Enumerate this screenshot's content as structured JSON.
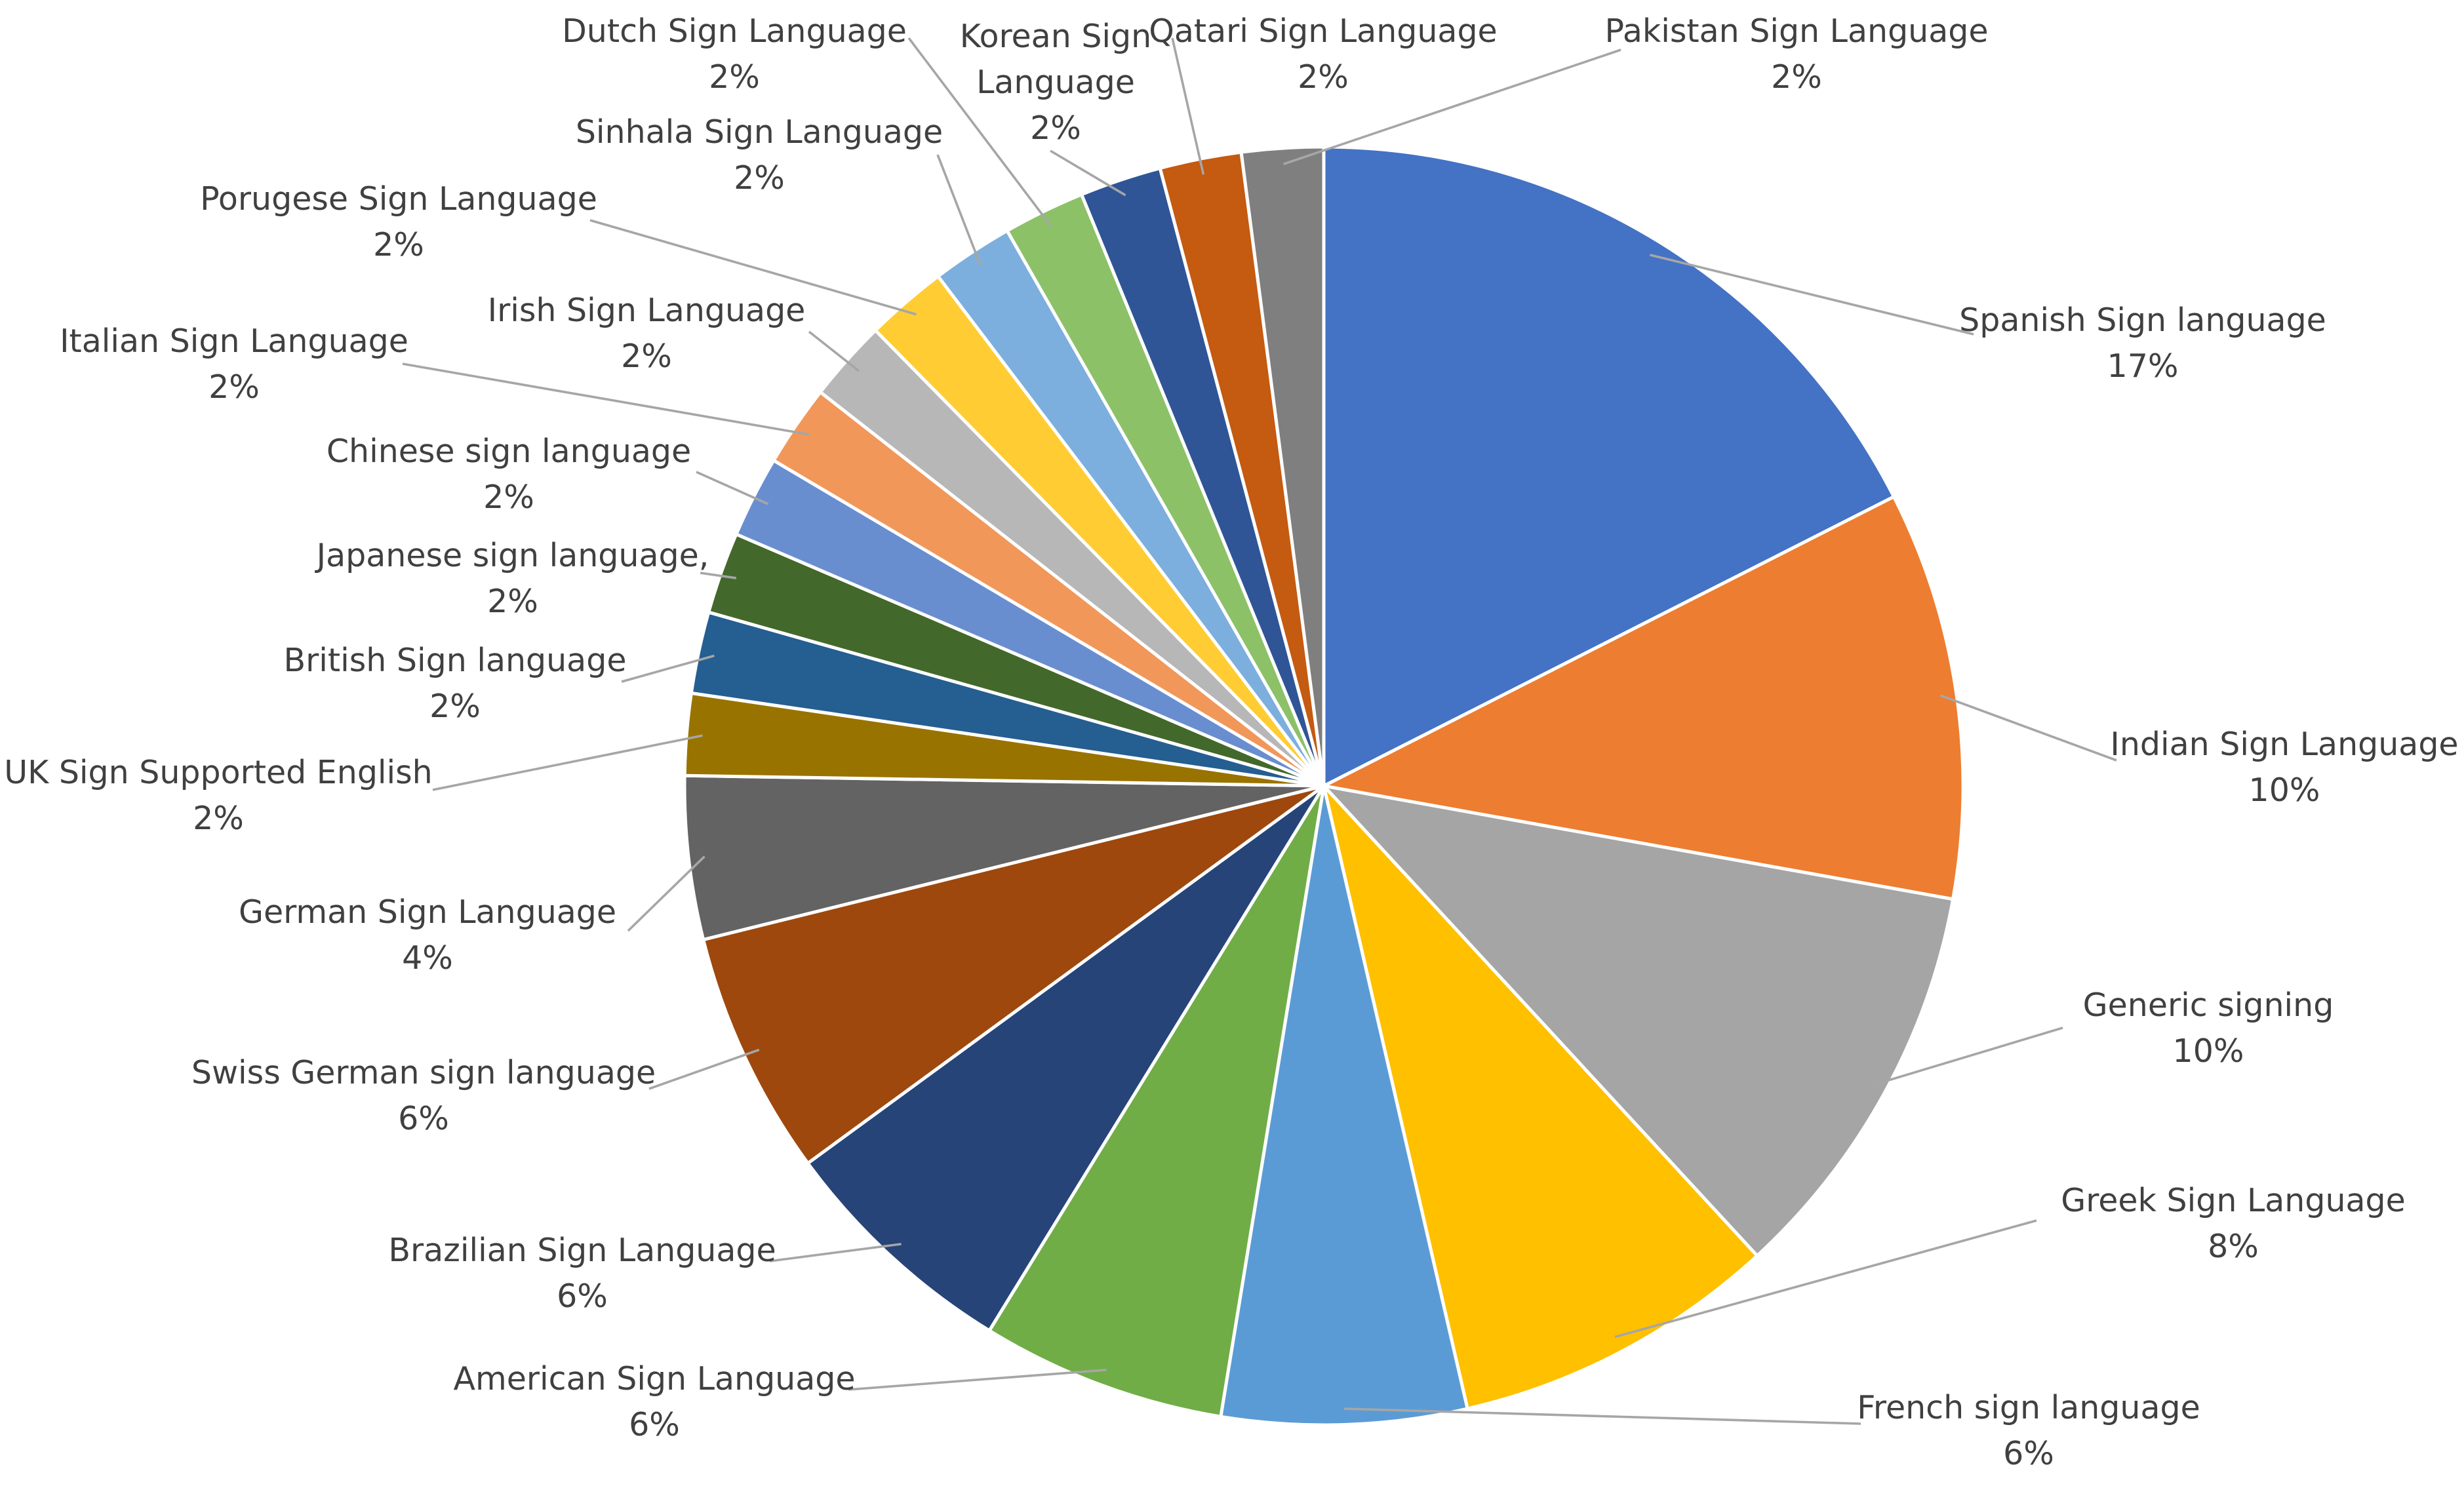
{
  "chart_data": {
    "type": "pie",
    "title": "",
    "unit": "%",
    "slices": [
      {
        "label": "Spanish Sign language",
        "value": 17,
        "value_label": "17%",
        "color": "#4472C4"
      },
      {
        "label": "Indian Sign Language",
        "value": 10,
        "value_label": "10%",
        "color": "#ED7D31"
      },
      {
        "label": "Generic signing",
        "value": 10,
        "value_label": "10%",
        "color": "#A5A5A5"
      },
      {
        "label": "Greek Sign Language",
        "value": 8,
        "value_label": "8%",
        "color": "#FFC000"
      },
      {
        "label": "French sign language",
        "value": 6,
        "value_label": "6%",
        "color": "#5B9BD5"
      },
      {
        "label": "American Sign Language",
        "value": 6,
        "value_label": "6%",
        "color": "#70AD47"
      },
      {
        "label": "Brazilian Sign Language",
        "value": 6,
        "value_label": "6%",
        "color": "#264478"
      },
      {
        "label": "Swiss German sign language",
        "value": 6,
        "value_label": "6%",
        "color": "#9E480E"
      },
      {
        "label": "German Sign Language",
        "value": 4,
        "value_label": "4%",
        "color": "#636363"
      },
      {
        "label": "UK Sign Supported English",
        "value": 2,
        "value_label": "2%",
        "color": "#997300"
      },
      {
        "label": "British Sign language",
        "value": 2,
        "value_label": "2%",
        "color": "#255E91"
      },
      {
        "label": "Japanese sign language,",
        "value": 2,
        "value_label": "2%",
        "color": "#43682B"
      },
      {
        "label": "Chinese sign language",
        "value": 2,
        "value_label": "2%",
        "color": "#698ED0"
      },
      {
        "label": "Italian Sign Language",
        "value": 2,
        "value_label": "2%",
        "color": "#F1975A"
      },
      {
        "label": "Irish Sign Language",
        "value": 2,
        "value_label": "2%",
        "color": "#B7B7B7"
      },
      {
        "label": "Porugese Sign Language",
        "value": 2,
        "value_label": "2%",
        "color": "#FFCD33"
      },
      {
        "label": "Sinhala Sign Language",
        "value": 2,
        "value_label": "2%",
        "color": "#7CAFDD"
      },
      {
        "label": "Dutch Sign Language",
        "value": 2,
        "value_label": "2%",
        "color": "#8CC168"
      },
      {
        "label": "Korean Sign Language",
        "value": 2,
        "value_label": "2%",
        "color": "#2F5597"
      },
      {
        "label": "Qatari Sign Language",
        "value": 2,
        "value_label": "2%",
        "color": "#C55A11"
      },
      {
        "label": "Pakistan Sign Language",
        "value": 2,
        "value_label": "2%",
        "color": "#7F7F7F"
      }
    ]
  }
}
